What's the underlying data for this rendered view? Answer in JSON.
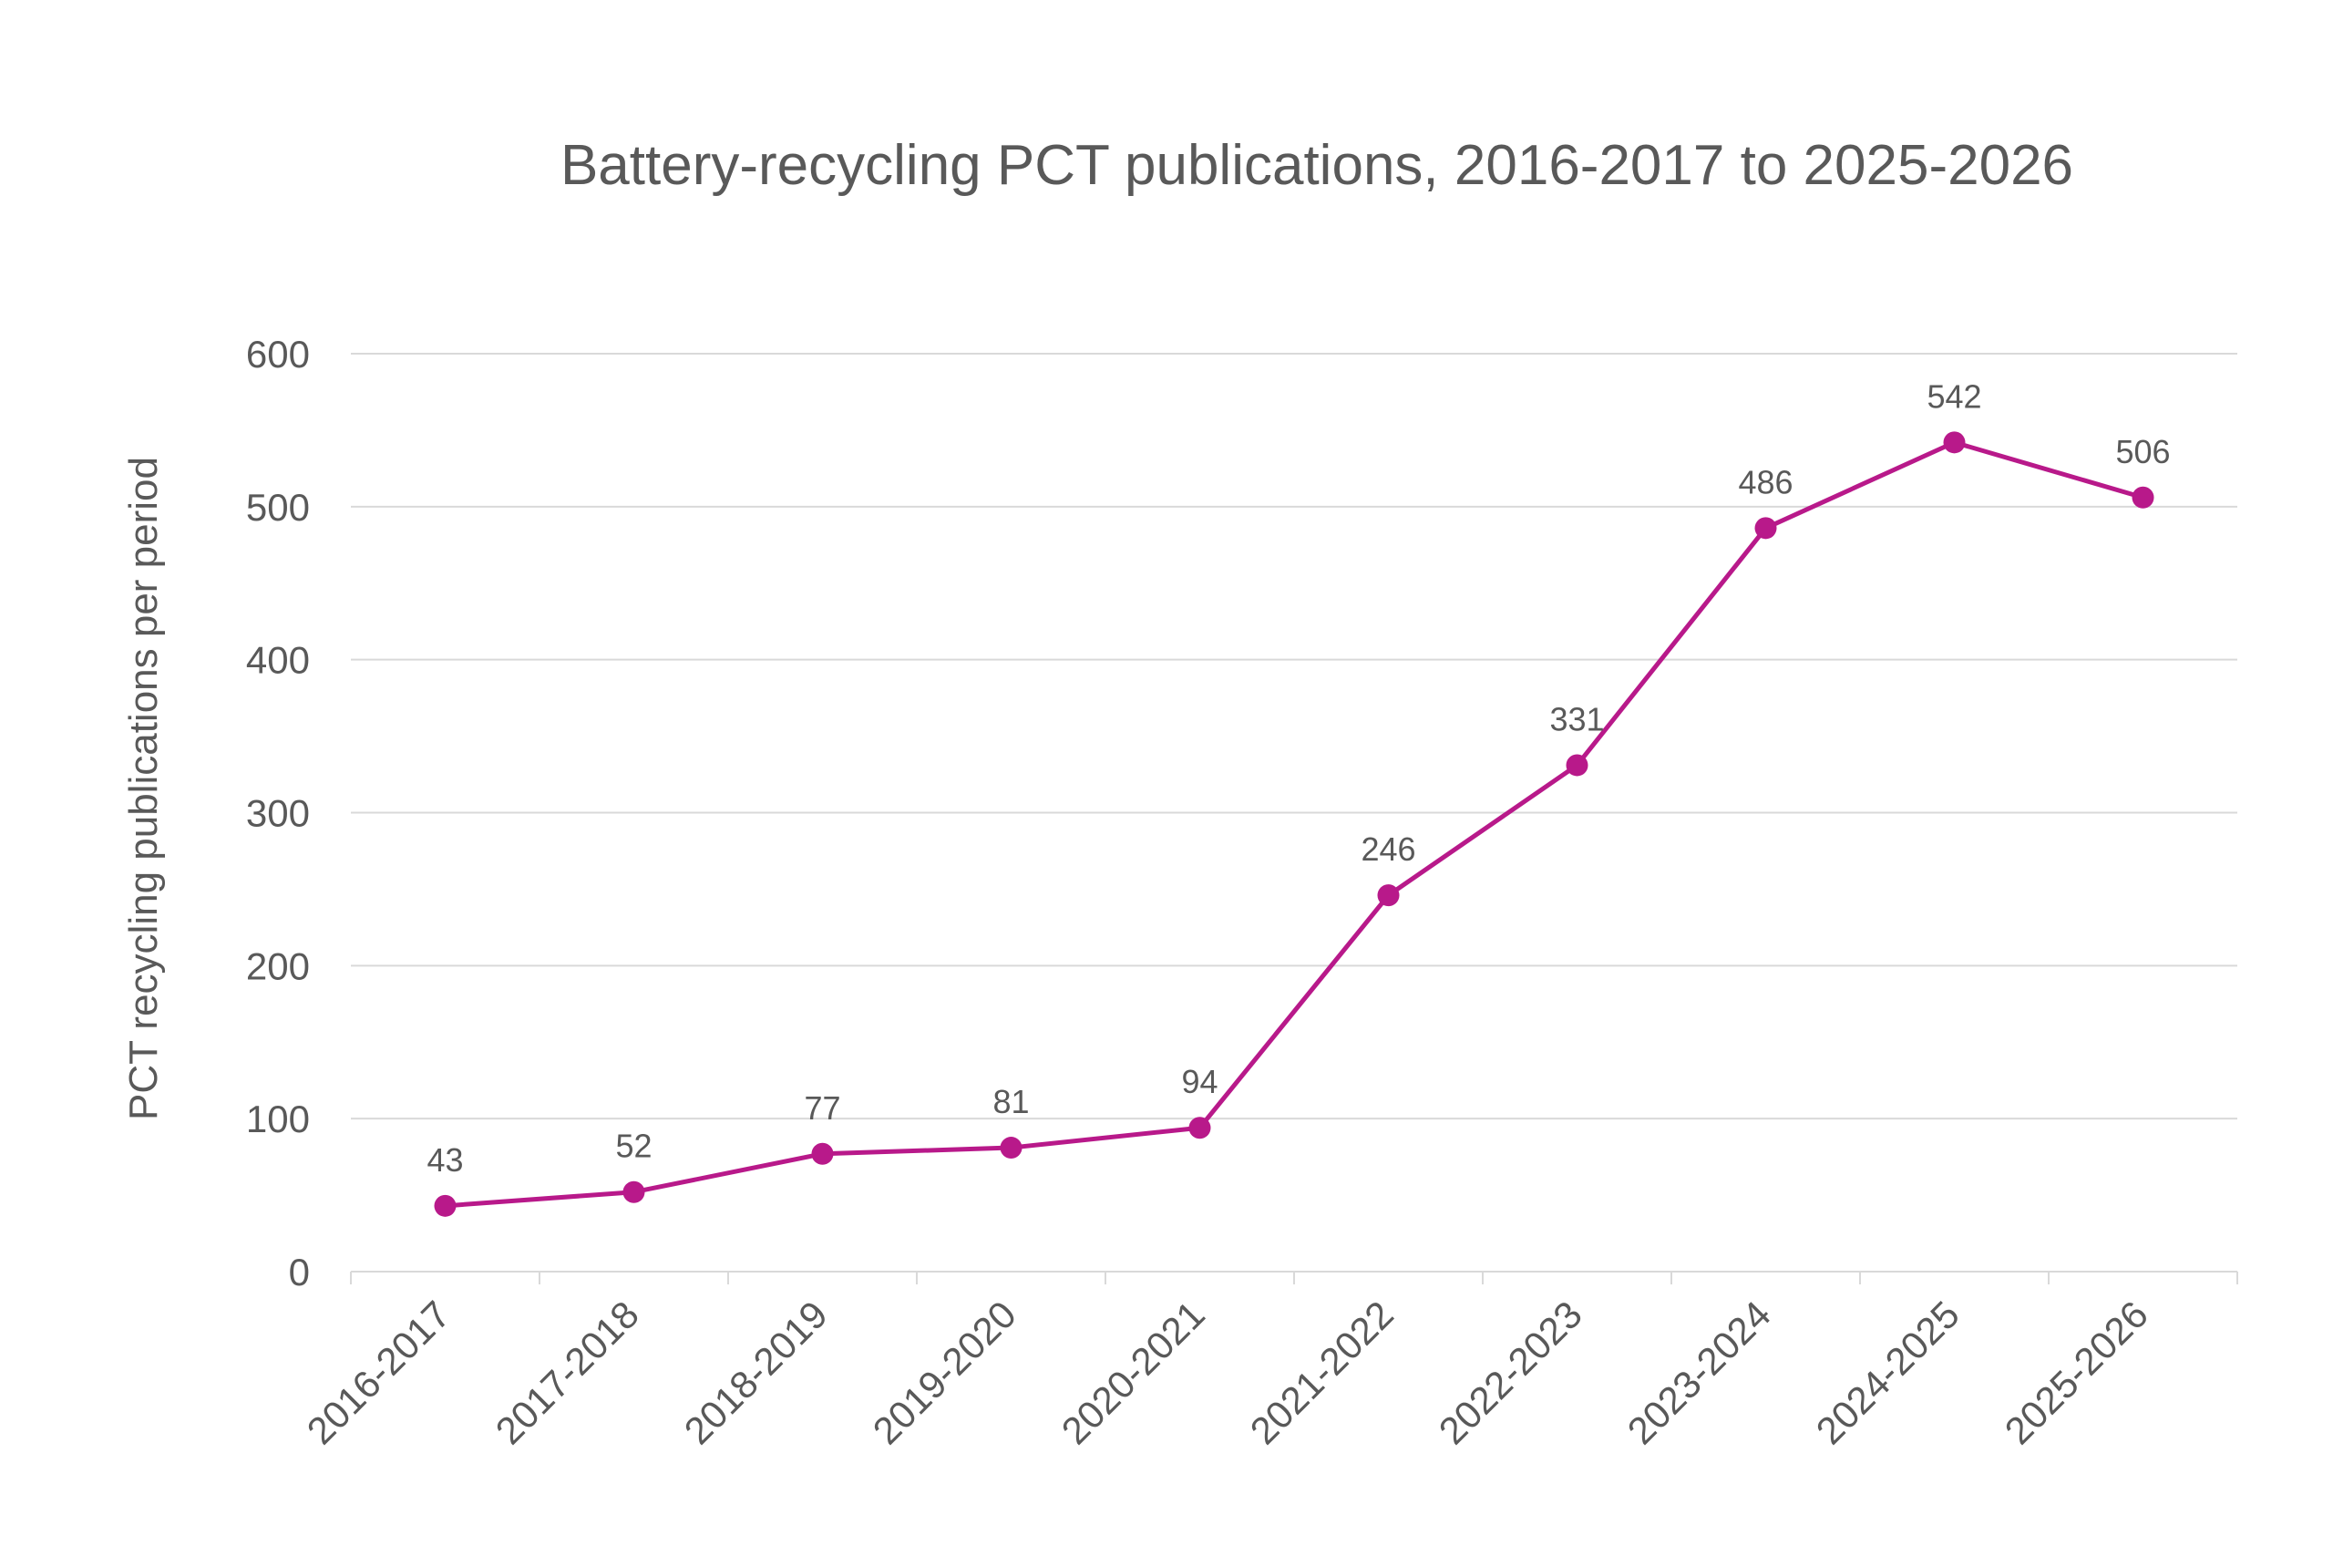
{
  "chart_data": {
    "type": "line",
    "title": "Battery-recycling PCT publications, 2016-2017 to 2025-2026",
    "xlabel": "",
    "ylabel": "PCT recycling publications per period",
    "categories": [
      "2016-2017",
      "2017-2018",
      "2018-2019",
      "2019-2020",
      "2020-2021",
      "2021-2022",
      "2022-2023",
      "2023-2024",
      "2024-2025",
      "2025-2026"
    ],
    "series": [
      {
        "values": [
          43,
          52,
          77,
          81,
          94,
          246,
          331,
          486,
          542,
          506
        ],
        "data_labels": [
          "43",
          "52",
          "77",
          "81",
          "94",
          "246",
          "331",
          "486",
          "542",
          "506"
        ]
      }
    ],
    "ylim": [
      0,
      600
    ],
    "yticks": [
      0,
      100,
      200,
      300,
      400,
      500,
      600
    ],
    "ytick_labels": [
      "0",
      "100",
      "200",
      "300",
      "400",
      "500",
      "600"
    ],
    "grid": "horizontal",
    "legend": "none"
  },
  "colors": {
    "series_line": "#b8198a",
    "text": "#595959",
    "gridline": "#d9d9d9",
    "axis": "#d9d9d9"
  }
}
